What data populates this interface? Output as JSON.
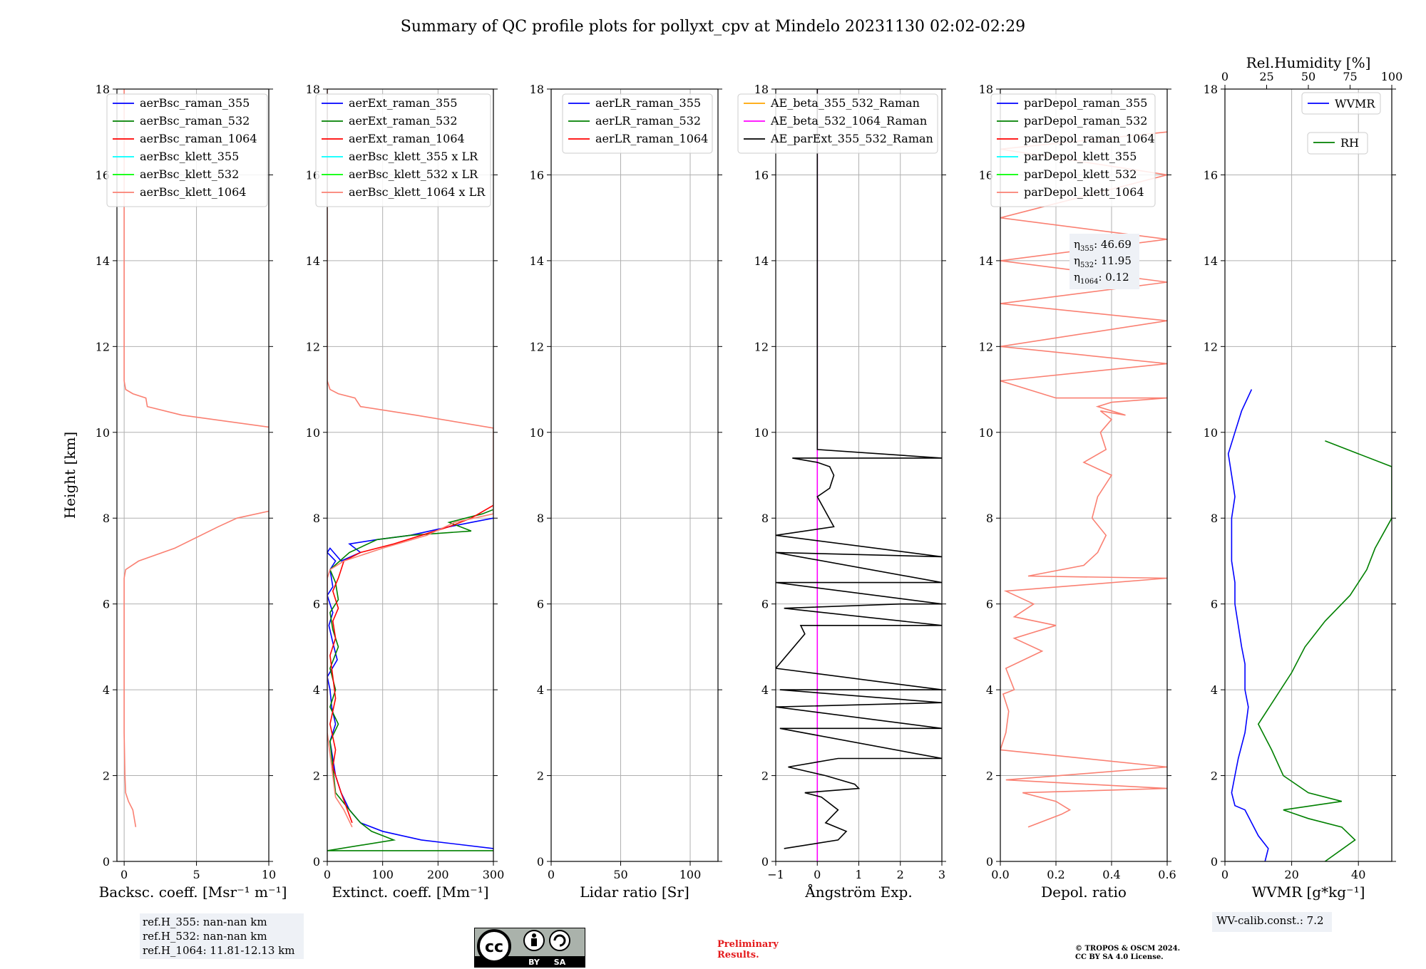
{
  "title": "Summary of QC profile plots for pollyxt_cpv at Mindelo 20231130 02:02-02:29",
  "colors": {
    "raman_355": "#0000ff",
    "raman_532": "#008000",
    "raman_1064": "#ff0000",
    "klett_355": "#00ffff",
    "klett_532": "#00ff00",
    "klett_1064": "#fa8072",
    "ae_beta_355_532": "#ffa500",
    "ae_beta_532_1064": "#ff00ff",
    "ae_parext": "#000000"
  },
  "chart_data": [
    {
      "type": "line",
      "panel": "backscatter",
      "xlabel": "Backsc. coeff. [Msr⁻¹ m⁻¹]",
      "ylabel": "Height [km]",
      "xlim": [
        -0.5,
        10
      ],
      "ylim": [
        0,
        18
      ],
      "xticks": [
        "0",
        "5",
        "10"
      ],
      "yticks": [
        "0",
        "2",
        "4",
        "6",
        "8",
        "10",
        "12",
        "14",
        "16",
        "18"
      ],
      "grid": true,
      "legend": [
        "aerBsc_raman_355",
        "aerBsc_raman_532",
        "aerBsc_raman_1064",
        "aerBsc_klett_355",
        "aerBsc_klett_532",
        "aerBsc_klett_1064"
      ],
      "series": [
        {
          "name": "aerBsc_klett_1064",
          "color": "#fa8072",
          "x": [
            0.8,
            0.6,
            0.3,
            0.1,
            0.05,
            0.0,
            0.0,
            0.0,
            0.1,
            1.0,
            3.5,
            6.5,
            7.8,
            10.5,
            10.5,
            4.0,
            1.6,
            1.5,
            0.6,
            0.1,
            0.0,
            0.0,
            0.0,
            0.0,
            0.0
          ],
          "y": [
            0.8,
            1.2,
            1.4,
            1.6,
            2.0,
            3.0,
            5.0,
            6.6,
            6.8,
            7.0,
            7.3,
            7.8,
            8.0,
            8.2,
            10.1,
            10.4,
            10.6,
            10.8,
            10.9,
            11.0,
            11.2,
            12.0,
            14.0,
            16.0,
            18.0
          ]
        }
      ]
    },
    {
      "type": "line",
      "panel": "extinction",
      "xlabel": "Extinct. coeff. [Mm⁻¹]",
      "xlim": [
        0,
        300
      ],
      "ylim": [
        0,
        18
      ],
      "xticks": [
        "0",
        "100",
        "200",
        "300"
      ],
      "yticks": [
        "0",
        "2",
        "4",
        "6",
        "8",
        "10",
        "12",
        "14",
        "16",
        "18"
      ],
      "grid": true,
      "legend": [
        "aerExt_raman_355",
        "aerExt_raman_532",
        "aerExt_raman_1064",
        "aerBsc_klett_355 x LR",
        "aerBsc_klett_532 x LR",
        "aerBsc_klett_1064 x LR"
      ],
      "series": [
        {
          "name": "aerExt_raman_355",
          "color": "#0000ff",
          "x": [
            300,
            170,
            100,
            60,
            40,
            25,
            15,
            10,
            5,
            15,
            8,
            5,
            0,
            18,
            10,
            3,
            10,
            0,
            10,
            5,
            15,
            0,
            5,
            25,
            60,
            40,
            90,
            150,
            220,
            260,
            300
          ],
          "y": [
            0.3,
            0.5,
            0.7,
            0.9,
            1.2,
            1.6,
            2.0,
            2.4,
            2.8,
            3.2,
            3.6,
            4.0,
            4.3,
            4.7,
            5.1,
            5.5,
            5.8,
            6.2,
            6.4,
            6.8,
            7.0,
            7.2,
            7.3,
            7.0,
            7.2,
            7.4,
            7.5,
            7.6,
            7.8,
            7.9,
            8.0
          ]
        },
        {
          "name": "aerExt_raman_532",
          "color": "#008000",
          "x": [
            300,
            0,
            120,
            80,
            60,
            40,
            15,
            10,
            5,
            20,
            5,
            15,
            5,
            20,
            10,
            5,
            20,
            15,
            5,
            40,
            90,
            150,
            260,
            220,
            280,
            300
          ],
          "y": [
            0.25,
            0.25,
            0.5,
            0.7,
            0.9,
            1.2,
            1.6,
            2.2,
            2.8,
            3.2,
            3.6,
            4.0,
            4.5,
            5.0,
            5.4,
            5.8,
            6.1,
            6.5,
            6.8,
            7.2,
            7.5,
            7.6,
            7.7,
            7.9,
            8.1,
            8.2
          ]
        },
        {
          "name": "aerExt_raman_1064",
          "color": "#ff0000",
          "x": [
            45,
            25,
            10,
            15,
            5,
            15,
            10,
            5,
            15,
            10,
            20,
            10,
            20,
            30,
            60,
            120,
            170,
            220,
            260,
            300
          ],
          "y": [
            0.9,
            1.6,
            2.2,
            2.6,
            3.2,
            3.8,
            4.3,
            4.8,
            5.2,
            5.6,
            5.9,
            6.3,
            6.6,
            7.0,
            7.2,
            7.4,
            7.6,
            7.8,
            8.0,
            8.3
          ]
        },
        {
          "name": "aerBsc_klett_1064 x LR",
          "color": "#fa8072",
          "x": [
            45,
            30,
            15,
            10,
            0,
            0,
            0,
            5,
            30,
            100,
            180,
            230,
            300,
            300,
            160,
            60,
            50,
            20,
            5,
            0,
            0,
            0
          ],
          "y": [
            0.8,
            1.2,
            1.5,
            2.0,
            3.0,
            5.0,
            6.6,
            6.8,
            7.0,
            7.3,
            7.6,
            7.9,
            8.1,
            10.1,
            10.4,
            10.6,
            10.8,
            10.9,
            11.0,
            11.2,
            14.0,
            18.0
          ]
        }
      ]
    },
    {
      "type": "line",
      "panel": "lidar_ratio",
      "xlabel": "Lidar ratio [Sr]",
      "xlim": [
        0,
        120
      ],
      "ylim": [
        0,
        18
      ],
      "xticks": [
        "0",
        "50",
        "100"
      ],
      "yticks": [
        "0",
        "2",
        "4",
        "6",
        "8",
        "10",
        "12",
        "14",
        "16",
        "18"
      ],
      "grid": true,
      "legend": [
        "aerLR_raman_355",
        "aerLR_raman_532",
        "aerLR_raman_1064"
      ],
      "series": []
    },
    {
      "type": "line",
      "panel": "angstrom",
      "xlabel": "Ångström Exp.",
      "xlim": [
        -1,
        3
      ],
      "ylim": [
        0,
        18
      ],
      "xticks": [
        "−1",
        "0",
        "1",
        "2",
        "3"
      ],
      "yticks": [
        "0",
        "2",
        "4",
        "6",
        "8",
        "10",
        "12",
        "14",
        "16",
        "18"
      ],
      "grid": true,
      "legend": [
        "AE_beta_355_532_Raman",
        "AE_beta_532_1064_Raman",
        "AE_parExt_355_532_Raman"
      ],
      "series": [
        {
          "name": "AE_beta_532_1064_Raman",
          "color": "#ff00ff",
          "x": [
            0,
            0,
            0
          ],
          "y": [
            0,
            9.6,
            18
          ]
        },
        {
          "name": "AE_parExt_355_532_Raman",
          "color": "#000000",
          "x": [
            -0.8,
            0.5,
            0.7,
            0.2,
            0.5,
            0.1,
            -0.3,
            1.0,
            0.9,
            0.2,
            -0.7,
            0.5,
            3.0,
            -0.9,
            3.0,
            -1.0,
            3.0,
            -0.9,
            3.0,
            -1.0,
            -0.3,
            -0.4,
            3.0,
            -0.8,
            2.0,
            3.0,
            -1.0,
            3.0,
            -1.0,
            3.0,
            -1.0,
            0.4,
            0.0,
            0.3,
            0.4,
            0.3,
            0.0,
            -0.6,
            3.0,
            0.0,
            0.0
          ],
          "y": [
            0.3,
            0.5,
            0.7,
            0.9,
            1.2,
            1.5,
            1.6,
            1.7,
            1.8,
            2.0,
            2.2,
            2.4,
            2.4,
            3.1,
            3.1,
            3.6,
            3.7,
            4.0,
            4.0,
            4.5,
            5.3,
            5.5,
            5.5,
            5.9,
            6.0,
            6.0,
            6.5,
            6.5,
            7.2,
            7.1,
            7.6,
            7.8,
            8.5,
            8.7,
            9.0,
            9.2,
            9.3,
            9.4,
            9.4,
            9.6,
            18.0
          ]
        }
      ]
    },
    {
      "type": "line",
      "panel": "depolarization",
      "xlabel": "Depol. ratio",
      "xlim": [
        0,
        0.6
      ],
      "ylim": [
        0,
        18
      ],
      "xticks": [
        "0.0",
        "0.2",
        "0.4",
        "0.6"
      ],
      "yticks": [
        "0",
        "2",
        "4",
        "6",
        "8",
        "10",
        "12",
        "14",
        "16",
        "18"
      ],
      "grid": true,
      "legend": [
        "parDepol_raman_355",
        "parDepol_raman_532",
        "parDepol_raman_1064",
        "parDepol_klett_355",
        "parDepol_klett_532",
        "parDepol_klett_1064"
      ],
      "annotations": [
        {
          "sym": "η",
          "sub": "355",
          "value": ": 46.69"
        },
        {
          "sym": "η",
          "sub": "532",
          "value": ": 11.95"
        },
        {
          "sym": "η",
          "sub": "1064",
          "value": ": 0.12"
        }
      ],
      "series": [
        {
          "name": "parDepol_klett_1064",
          "color": "#fa8072",
          "x": [
            0.1,
            0.18,
            0.22,
            0.25,
            0.2,
            0.08,
            0.6,
            0.02,
            0.6,
            0.0,
            0.02,
            0.03,
            0.01,
            0.05,
            0.02,
            0.15,
            0.05,
            0.2,
            0.05,
            0.12,
            0.02,
            0.6,
            0.1,
            0.3,
            0.35,
            0.38,
            0.33,
            0.35,
            0.4,
            0.3,
            0.38,
            0.36,
            0.4,
            0.36,
            0.45,
            0.35,
            0.4,
            0.6,
            0.2,
            0.0,
            0.6,
            0.0,
            0.6,
            0.0,
            0.6,
            0.0,
            0.6,
            0.0,
            0.6,
            0.0,
            0.6
          ],
          "y": [
            0.8,
            1.0,
            1.1,
            1.2,
            1.4,
            1.6,
            1.7,
            1.9,
            2.2,
            2.6,
            3.0,
            3.5,
            3.9,
            4.0,
            4.5,
            4.9,
            5.2,
            5.5,
            5.7,
            6.0,
            6.3,
            6.6,
            6.65,
            6.9,
            7.2,
            7.6,
            8.0,
            8.5,
            9.0,
            9.3,
            9.6,
            10.0,
            10.3,
            10.5,
            10.4,
            10.6,
            10.7,
            10.8,
            10.8,
            11.2,
            11.6,
            12.0,
            12.6,
            13.0,
            13.5,
            14.0,
            14.5,
            15.0,
            16.0,
            16.6,
            17.0
          ]
        }
      ]
    },
    {
      "type": "line",
      "panel": "water_vapor",
      "xlabel": "WVMR [g*kg⁻¹]",
      "xlabel_top": "Rel.Humidity [%]",
      "xlim": [
        0,
        50
      ],
      "xlim_top": [
        0,
        100
      ],
      "ylim": [
        0,
        18
      ],
      "xticks": [
        "0",
        "20",
        "40"
      ],
      "xticks_top": [
        "0",
        "25",
        "50",
        "75",
        "100"
      ],
      "yticks": [
        "0",
        "2",
        "4",
        "6",
        "8",
        "10",
        "12",
        "14",
        "16",
        "18"
      ],
      "grid": true,
      "legend": [
        "WVMR",
        "RH"
      ],
      "series": [
        {
          "name": "WVMR",
          "color": "#0000ff",
          "x": [
            12,
            13,
            10,
            8,
            6,
            3,
            2,
            3,
            4,
            6,
            7,
            6,
            6,
            5,
            4,
            3,
            3,
            2,
            2,
            2,
            3,
            2,
            1,
            3,
            5,
            8
          ],
          "y": [
            0.0,
            0.3,
            0.6,
            0.9,
            1.2,
            1.3,
            1.6,
            2.0,
            2.4,
            3.0,
            3.6,
            4.0,
            4.6,
            5.0,
            5.5,
            6.0,
            6.5,
            7.0,
            7.5,
            8.0,
            8.5,
            9.0,
            9.5,
            10.0,
            10.5,
            11.0
          ]
        },
        {
          "name": "RH",
          "color": "#008000",
          "x": [
            60,
            78,
            70,
            50,
            35,
            70,
            50,
            35,
            28,
            20,
            30,
            40,
            48,
            60,
            75,
            85,
            90,
            100,
            100,
            100,
            60
          ],
          "y": [
            0.0,
            0.5,
            0.8,
            1.0,
            1.2,
            1.4,
            1.6,
            2.0,
            2.6,
            3.2,
            3.8,
            4.4,
            5.0,
            5.6,
            6.2,
            6.8,
            7.3,
            8.0,
            8.6,
            9.2,
            9.8
          ]
        }
      ]
    }
  ],
  "reference_heights": [
    "ref.H_355: nan-nan km",
    "ref.H_532: nan-nan km",
    "ref.H_1064: 11.81-12.13 km"
  ],
  "calibration": "WV-calib.const.: 7.2",
  "preliminary": [
    "Preliminary",
    "Results."
  ],
  "copyright": [
    "© TROPOS & OSCM 2024.",
    "CC BY SA 4.0 License."
  ],
  "license_badge": {
    "main": "cc",
    "by": "BY",
    "sa": "SA",
    "icon": "cc-by-sa-badge"
  }
}
